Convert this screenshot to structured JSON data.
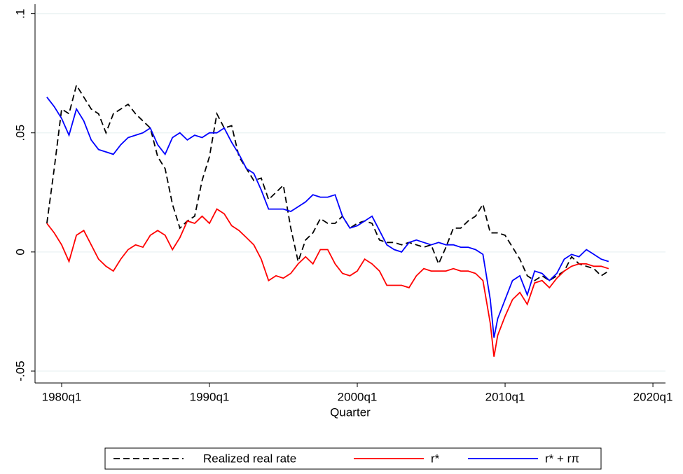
{
  "chart_data": {
    "type": "line",
    "x_label": "Quarter",
    "x": [
      1979,
      1979.5,
      1980,
      1980.5,
      1981,
      1981.5,
      1982,
      1982.5,
      1983,
      1983.5,
      1984,
      1984.5,
      1985,
      1985.5,
      1986,
      1986.5,
      1987,
      1987.5,
      1988,
      1988.5,
      1989,
      1989.5,
      1990,
      1990.5,
      1991,
      1991.5,
      1992,
      1992.5,
      1993,
      1993.5,
      1994,
      1994.5,
      1995,
      1995.5,
      1996,
      1996.5,
      1997,
      1997.5,
      1998,
      1998.5,
      1999,
      1999.5,
      2000,
      2000.5,
      2001,
      2001.5,
      2002,
      2002.5,
      2003,
      2003.5,
      2004,
      2004.5,
      2005,
      2005.5,
      2006,
      2006.5,
      2007,
      2007.5,
      2008,
      2008.5,
      2009,
      2009.25,
      2009.5,
      2010,
      2010.5,
      2011,
      2011.5,
      2012,
      2012.5,
      2013,
      2013.5,
      2014,
      2014.5,
      2015,
      2015.5,
      2016,
      2016.5,
      2017
    ],
    "series": [
      {
        "name": "Realized real rate",
        "color": "#000000",
        "dashed": true,
        "values": [
          0.012,
          0.035,
          0.06,
          0.058,
          0.07,
          0.065,
          0.06,
          0.058,
          0.05,
          0.058,
          0.06,
          0.062,
          0.058,
          0.055,
          0.052,
          0.04,
          0.035,
          0.02,
          0.01,
          0.013,
          0.015,
          0.03,
          0.04,
          0.058,
          0.052,
          0.053,
          0.04,
          0.035,
          0.03,
          0.031,
          0.022,
          0.025,
          0.028,
          0.01,
          -0.004,
          0.005,
          0.008,
          0.014,
          0.012,
          0.012,
          0.015,
          0.01,
          0.012,
          0.013,
          0.012,
          0.005,
          0.004,
          0.004,
          0.003,
          0.004,
          0.003,
          0.002,
          0.003,
          -0.005,
          0.002,
          0.01,
          0.01,
          0.013,
          0.015,
          0.02,
          0.008,
          0.008,
          0.008,
          0.007,
          0.002,
          -0.003,
          -0.01,
          -0.012,
          -0.01,
          -0.012,
          -0.01,
          -0.008,
          -0.002,
          -0.005,
          -0.006,
          -0.007,
          -0.01,
          -0.008
        ]
      },
      {
        "name": "r*",
        "color": "#ff0000",
        "dashed": false,
        "values": [
          0.012,
          0.008,
          0.003,
          -0.004,
          0.007,
          0.009,
          0.003,
          -0.003,
          -0.006,
          -0.008,
          -0.003,
          0.001,
          0.003,
          0.002,
          0.007,
          0.009,
          0.007,
          0.001,
          0.006,
          0.013,
          0.012,
          0.015,
          0.012,
          0.018,
          0.016,
          0.011,
          0.009,
          0.006,
          0.003,
          -0.003,
          -0.012,
          -0.01,
          -0.011,
          -0.009,
          -0.005,
          -0.002,
          -0.005,
          0.001,
          0.001,
          -0.005,
          -0.009,
          -0.01,
          -0.008,
          -0.003,
          -0.005,
          -0.008,
          -0.014,
          -0.014,
          -0.014,
          -0.015,
          -0.01,
          -0.007,
          -0.008,
          -0.008,
          -0.008,
          -0.007,
          -0.008,
          -0.008,
          -0.009,
          -0.012,
          -0.03,
          -0.044,
          -0.035,
          -0.027,
          -0.02,
          -0.017,
          -0.022,
          -0.013,
          -0.012,
          -0.015,
          -0.011,
          -0.008,
          -0.006,
          -0.005,
          -0.005,
          -0.006,
          -0.006,
          -0.007
        ]
      },
      {
        "name": "r* + rπ",
        "color": "#0000ff",
        "dashed": false,
        "values": [
          0.065,
          0.061,
          0.056,
          0.049,
          0.06,
          0.055,
          0.047,
          0.043,
          0.042,
          0.041,
          0.045,
          0.048,
          0.049,
          0.05,
          0.052,
          0.045,
          0.041,
          0.048,
          0.05,
          0.047,
          0.049,
          0.048,
          0.05,
          0.05,
          0.052,
          0.046,
          0.041,
          0.035,
          0.033,
          0.026,
          0.018,
          0.018,
          0.018,
          0.017,
          0.019,
          0.021,
          0.024,
          0.023,
          0.023,
          0.024,
          0.015,
          0.01,
          0.011,
          0.013,
          0.015,
          0.009,
          0.003,
          0.001,
          0,
          0.004,
          0.005,
          0.004,
          0.003,
          0.004,
          0.003,
          0.003,
          0.002,
          0.002,
          0.001,
          -0.001,
          -0.02,
          -0.036,
          -0.028,
          -0.02,
          -0.012,
          -0.01,
          -0.018,
          -0.008,
          -0.009,
          -0.012,
          -0.009,
          -0.003,
          -0.001,
          -0.002,
          0.001,
          -0.001,
          -0.003,
          -0.004
        ]
      }
    ],
    "xlim": [
      1978.2,
      2020.85
    ],
    "xticks": [
      {
        "value": 1980,
        "label": "1980q1"
      },
      {
        "value": 1990,
        "label": "1990q1"
      },
      {
        "value": 2000,
        "label": "2000q1"
      },
      {
        "value": 2010,
        "label": "2010q1"
      },
      {
        "value": 2020,
        "label": "2020q1"
      }
    ],
    "ylim": [
      -0.055,
      0.104
    ],
    "yticks": [
      {
        "value": -0.05,
        "label": "-.05"
      },
      0,
      {
        "value": 0.05,
        "label": ".05"
      },
      {
        "value": 0.1,
        "label": ".1"
      }
    ],
    "grid": true,
    "legend": "bottom"
  }
}
